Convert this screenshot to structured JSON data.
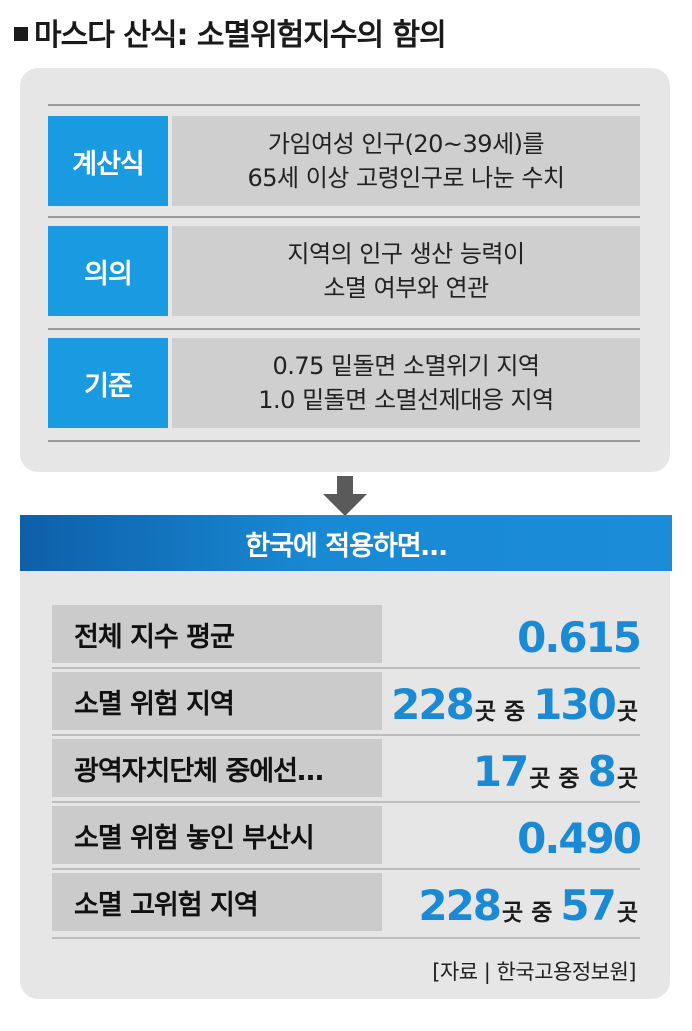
{
  "title": "마스다 산식: 소멸위험지수의 함의",
  "definitions": [
    {
      "label": "계산식",
      "lines": [
        "가임여성 인구(20~39세)를",
        "65세 이상 고령인구로 나눈 수치"
      ]
    },
    {
      "label": "의의",
      "lines": [
        "지역의 인구 생산 능력이",
        "소멸 여부와 연관"
      ]
    },
    {
      "label": "기준",
      "lines": [
        "0.75 밑돌면 소멸위기 지역",
        "1.0 밑돌면 소멸선제대응 지역"
      ]
    }
  ],
  "banner": "한국에 적용하면…",
  "stats": [
    {
      "label": "전체 지수 평균",
      "value": "0.615"
    },
    {
      "label": "소멸 위험 지역",
      "total": "228",
      "unit1": "곳",
      "mid": "중",
      "count": "130",
      "unit2": "곳"
    },
    {
      "label": "광역자치단체 중에선…",
      "total": "17",
      "unit1": "곳",
      "mid": "중",
      "count": "8",
      "unit2": "곳"
    },
    {
      "label": "소멸 위험 놓인 부산시",
      "value": "0.490"
    },
    {
      "label": "소멸 고위험 지역",
      "total": "228",
      "unit1": "곳",
      "mid": "중",
      "count": "57",
      "unit2": "곳"
    }
  ],
  "source": "[자료 | 한국고용정보원]",
  "colors": {
    "accent": "#1a9ae0",
    "banner": "#0d5fa8",
    "box_bg": "#e6e6e6",
    "cell_bg": "#cfcfcf"
  },
  "icons": {
    "arrow": "arrow-down-icon",
    "bullet": "square-bullet-icon"
  }
}
